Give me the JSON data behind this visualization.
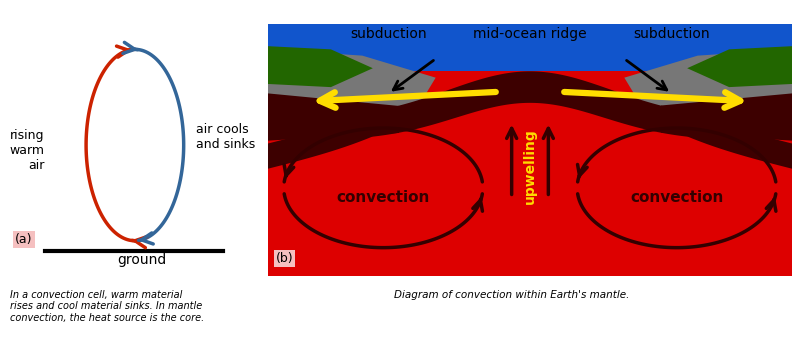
{
  "fig_width": 8.0,
  "fig_height": 3.45,
  "bg_color": "#ffffff",
  "panel_a": {
    "red_color": "#cc2200",
    "blue_color": "#336699",
    "label_a": "(a)",
    "label_ground": "ground",
    "label_rising": "rising\nwarm\nair",
    "label_cools": "air cools\nand sinks",
    "caption": "In a convection cell, warm material\nrises and cool material sinks. In mantle\nconvection, the heat source is the core."
  },
  "panel_b": {
    "mantle_color": "#dd0000",
    "dark_mantle_color": "#3d0000",
    "ocean_color": "#1155cc",
    "land_color": "#226600",
    "gray_color": "#777777",
    "arrow_color": "#330000",
    "yellow_color": "#ffdd00",
    "label_subduction_left": "subduction",
    "label_subduction_right": "subduction",
    "label_ridge": "mid-ocean ridge",
    "label_upwelling": "upwelling",
    "label_convection": "convection",
    "caption": "Diagram of convection within Earth's mantle."
  }
}
